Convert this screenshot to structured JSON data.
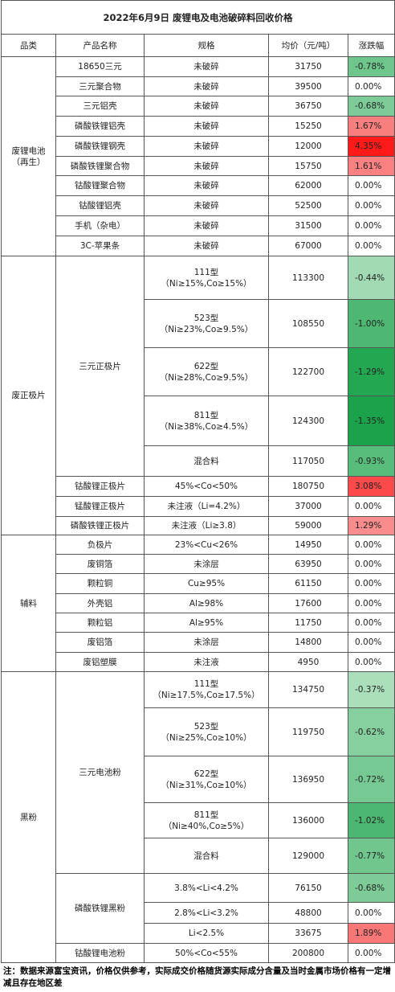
{
  "title": "2022年6月9日 废锂电及电池破碎料回收价格",
  "headers": [
    "品类",
    "产品名称",
    "规格",
    "均价（元/吨）",
    "涨跌幅"
  ],
  "groups": [
    {
      "category": "废锂电池\n（再生）",
      "products": [
        {
          "name": "18650三元",
          "specs": [
            {
              "spec": "未破碎",
              "price": 31750,
              "change": "-0.78%"
            }
          ]
        },
        {
          "name": "三元聚合物",
          "specs": [
            {
              "spec": "未破碎",
              "price": 39500,
              "change": "0.00%"
            }
          ]
        },
        {
          "name": "三元铝壳",
          "specs": [
            {
              "spec": "未破碎",
              "price": 36750,
              "change": "-0.68%"
            }
          ]
        },
        {
          "name": "磷酸铁锂铝壳",
          "specs": [
            {
              "spec": "未破碎",
              "price": 15250,
              "change": "1.67%"
            }
          ]
        },
        {
          "name": "磷酸铁锂钢壳",
          "specs": [
            {
              "spec": "未破碎",
              "price": 12000,
              "change": "4.35%"
            }
          ]
        },
        {
          "name": "磷酸铁锂聚合物",
          "specs": [
            {
              "spec": "未破碎",
              "price": 15750,
              "change": "1.61%"
            }
          ]
        },
        {
          "name": "钴酸锂聚合物",
          "specs": [
            {
              "spec": "未破碎",
              "price": 62000,
              "change": "0.00%"
            }
          ]
        },
        {
          "name": "钴酸锂铝壳",
          "specs": [
            {
              "spec": "未破碎",
              "price": 52500,
              "change": "0.00%"
            }
          ]
        },
        {
          "name": "手机（杂电）",
          "specs": [
            {
              "spec": "未破碎",
              "price": 31500,
              "change": "0.00%"
            }
          ]
        },
        {
          "name": "3C-苹果条",
          "specs": [
            {
              "spec": "未破碎",
              "price": 67000,
              "change": "0.00%"
            }
          ]
        }
      ]
    },
    {
      "category": "废正极片",
      "products": [
        {
          "name": "三元正极片",
          "specs": [
            {
              "spec": "111型\n（Ni≥15%,Co≥15%）",
              "price": 113300,
              "change": "-0.44%"
            },
            {
              "spec": "523型\n（Ni≥23%,Co≥9.5%）",
              "price": 108550,
              "change": "-1.00%"
            },
            {
              "spec": "622型\n（Ni≥28%,Co≥9.5%）",
              "price": 122700,
              "change": "-1.29%"
            },
            {
              "spec": "811型\n（Ni≥38%,Co≥4.5%）",
              "price": 124300,
              "change": "-1.35%"
            },
            {
              "spec": "混合料",
              "price": 117050,
              "change": "-0.93%"
            }
          ]
        },
        {
          "name": "钴酸锂正极片",
          "specs": [
            {
              "spec": "45%<Co<50%",
              "price": 180750,
              "change": "3.08%"
            }
          ]
        },
        {
          "name": "锰酸锂正极片",
          "specs": [
            {
              "spec": "未注液（Li=4.2%）",
              "price": 37000,
              "change": "0.00%"
            }
          ]
        },
        {
          "name": "磷酸铁锂正极片",
          "specs": [
            {
              "spec": "未注液（Li≥3.8）",
              "price": 59000,
              "change": "1.29%"
            }
          ]
        }
      ]
    },
    {
      "category": "辅料",
      "products": [
        {
          "name": "负极片",
          "specs": [
            {
              "spec": "23%<Cu<26%",
              "price": 14950,
              "change": "0.00%"
            }
          ]
        },
        {
          "name": "废铜箔",
          "specs": [
            {
              "spec": "未涂层",
              "price": 63950,
              "change": "0.00%"
            }
          ]
        },
        {
          "name": "颗粒铜",
          "specs": [
            {
              "spec": "Cu≥95%",
              "price": 61150,
              "change": "0.00%"
            }
          ]
        },
        {
          "name": "外壳铝",
          "specs": [
            {
              "spec": "Al≥98%",
              "price": 17600,
              "change": "0.00%"
            }
          ]
        },
        {
          "name": "颗粒铝",
          "specs": [
            {
              "spec": "Al≥95%",
              "price": 11750,
              "change": "0.00%"
            }
          ]
        },
        {
          "name": "废铝箔",
          "specs": [
            {
              "spec": "未涂层",
              "price": 14800,
              "change": "0.00%"
            }
          ]
        },
        {
          "name": "废铝塑膜",
          "specs": [
            {
              "spec": "未注液",
              "price": 4950,
              "change": "0.00%"
            }
          ]
        }
      ]
    },
    {
      "category": "黑粉",
      "products": [
        {
          "name": "三元电池粉",
          "specs": [
            {
              "spec": "111型\n（Ni≥17.5%,Co≥17.5%）",
              "price": 134750,
              "change": "-0.37%"
            },
            {
              "spec": "523型\n（Ni≥25%,Co≥10%）",
              "price": 119750,
              "change": "-0.62%"
            },
            {
              "spec": "622型\n（Ni≥31%,Co≥10%）",
              "price": 136950,
              "change": "-0.72%"
            },
            {
              "spec": "811型\n（Ni≥40%,Co≥5%）",
              "price": 136000,
              "change": "-1.02%"
            },
            {
              "spec": "混合料",
              "price": 129000,
              "change": "-0.77%"
            }
          ]
        },
        {
          "name": "磷酸铁锂黑粉",
          "specs": [
            {
              "spec": "3.8%<Li<4.2%",
              "price": 76150,
              "change": "-0.68%"
            },
            {
              "spec": "2.8%<Li<3.2%",
              "price": 48800,
              "change": "0.00%"
            },
            {
              "spec": "Li<2.5%",
              "price": 33675,
              "change": "1.89%"
            }
          ]
        },
        {
          "name": "钴酸锂电池粉",
          "specs": [
            {
              "spec": "50%<Co<55%",
              "price": 200800,
              "change": "0.00%"
            }
          ]
        }
      ]
    }
  ],
  "note": "注：数据来源富宝资讯，价格仅供参考，实际成交价格随货源实际成分含量及当时金属市场价格有一定增减且存在地区差"
}
